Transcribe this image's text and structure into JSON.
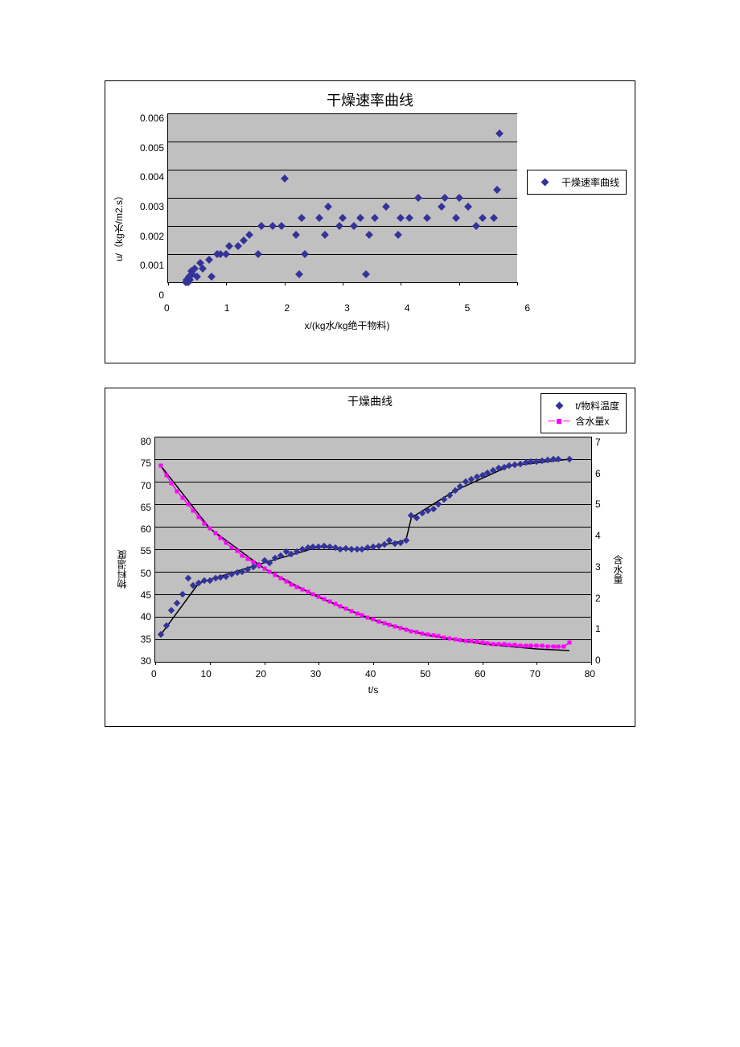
{
  "chart1": {
    "type": "scatter",
    "title": "干燥速率曲线",
    "xlabel": "x/(kg水/kg绝干物料)",
    "ylabel": "u/（kg水/m2.s）",
    "xlim": [
      0,
      6
    ],
    "ylim": [
      0,
      0.006
    ],
    "xtick_step": 1,
    "ytick_step": 0.001,
    "xticks": [
      "0",
      "1",
      "2",
      "3",
      "4",
      "5",
      "6"
    ],
    "yticks": [
      "0",
      "0.001",
      "0.002",
      "0.003",
      "0.004",
      "0.005",
      "0.006"
    ],
    "plot_bg": "#c0c0c0",
    "grid_color": "#000000",
    "marker_color": "#333399",
    "marker_shape": "diamond",
    "marker_size": 7,
    "legend_label": "干燥速率曲线",
    "points": [
      [
        0.3,
        0.0
      ],
      [
        0.32,
        0.0001
      ],
      [
        0.34,
        0.0
      ],
      [
        0.36,
        0.0002
      ],
      [
        0.38,
        0.0001
      ],
      [
        0.4,
        0.0004
      ],
      [
        0.42,
        0.0003
      ],
      [
        0.45,
        0.0005
      ],
      [
        0.5,
        0.0002
      ],
      [
        0.55,
        0.0007
      ],
      [
        0.6,
        0.0005
      ],
      [
        0.7,
        0.0008
      ],
      [
        0.75,
        0.0002
      ],
      [
        0.85,
        0.001
      ],
      [
        0.9,
        0.001
      ],
      [
        1.0,
        0.001
      ],
      [
        1.05,
        0.0013
      ],
      [
        1.2,
        0.0013
      ],
      [
        1.3,
        0.0015
      ],
      [
        1.4,
        0.0017
      ],
      [
        1.55,
        0.001
      ],
      [
        1.6,
        0.002
      ],
      [
        1.8,
        0.002
      ],
      [
        1.95,
        0.002
      ],
      [
        2.0,
        0.0037
      ],
      [
        2.2,
        0.0017
      ],
      [
        2.25,
        0.0003
      ],
      [
        2.3,
        0.0023
      ],
      [
        2.35,
        0.001
      ],
      [
        2.6,
        0.0023
      ],
      [
        2.7,
        0.0017
      ],
      [
        2.75,
        0.0027
      ],
      [
        2.95,
        0.002
      ],
      [
        3.0,
        0.0023
      ],
      [
        3.2,
        0.002
      ],
      [
        3.3,
        0.0023
      ],
      [
        3.4,
        0.0003
      ],
      [
        3.45,
        0.0017
      ],
      [
        3.55,
        0.0023
      ],
      [
        3.75,
        0.0027
      ],
      [
        3.95,
        0.0017
      ],
      [
        4.0,
        0.0023
      ],
      [
        4.15,
        0.0023
      ],
      [
        4.3,
        0.003
      ],
      [
        4.45,
        0.0023
      ],
      [
        4.7,
        0.0027
      ],
      [
        4.75,
        0.003
      ],
      [
        4.95,
        0.0023
      ],
      [
        5.0,
        0.003
      ],
      [
        5.15,
        0.0027
      ],
      [
        5.3,
        0.002
      ],
      [
        5.4,
        0.0023
      ],
      [
        5.6,
        0.0023
      ],
      [
        5.65,
        0.0033
      ],
      [
        5.7,
        0.0053
      ]
    ]
  },
  "chart2": {
    "type": "dual-axis-scatter-line",
    "title": "干燥曲线",
    "xlabel": "t/s",
    "ylabel_left": "物料温度",
    "ylabel_right": "含水量",
    "xlim": [
      0,
      80
    ],
    "ylim_left": [
      30,
      80
    ],
    "ylim_right": [
      0,
      7
    ],
    "xtick_step": 10,
    "ytick_left_step": 5,
    "ytick_right_step": 1,
    "xticks": [
      "0",
      "10",
      "20",
      "30",
      "40",
      "50",
      "60",
      "70",
      "80"
    ],
    "yticks_left": [
      "30",
      "35",
      "40",
      "45",
      "50",
      "55",
      "60",
      "65",
      "70",
      "75",
      "80"
    ],
    "yticks_right": [
      "0",
      "1",
      "2",
      "3",
      "4",
      "5",
      "6",
      "7"
    ],
    "plot_bg": "#c0c0c0",
    "grid_color": "#000000",
    "series_temp": {
      "label": "t/物料温度",
      "marker_color": "#333399",
      "marker_shape": "diamond",
      "marker_size": 6,
      "trend_color": "#000000",
      "trend_width": 1.5,
      "points": [
        [
          1,
          36.0
        ],
        [
          2,
          38.0
        ],
        [
          3,
          41.5
        ],
        [
          4,
          43.0
        ],
        [
          5,
          45.0
        ],
        [
          6,
          48.5
        ],
        [
          7,
          47.0
        ],
        [
          8,
          47.5
        ],
        [
          9,
          48.0
        ],
        [
          10,
          48.0
        ],
        [
          11,
          48.5
        ],
        [
          12,
          48.7
        ],
        [
          13,
          49.0
        ],
        [
          14,
          49.5
        ],
        [
          15,
          49.8
        ],
        [
          16,
          50.0
        ],
        [
          17,
          50.5
        ],
        [
          18,
          51.0
        ],
        [
          19,
          51.5
        ],
        [
          20,
          52.5
        ],
        [
          21,
          52.0
        ],
        [
          22,
          53.0
        ],
        [
          23,
          53.5
        ],
        [
          24,
          54.5
        ],
        [
          25,
          54.0
        ],
        [
          26,
          54.5
        ],
        [
          27,
          55.0
        ],
        [
          28,
          55.3
        ],
        [
          29,
          55.5
        ],
        [
          30,
          55.5
        ],
        [
          31,
          55.7
        ],
        [
          32,
          55.5
        ],
        [
          33,
          55.3
        ],
        [
          34,
          55.0
        ],
        [
          35,
          55.2
        ],
        [
          36,
          55.0
        ],
        [
          37,
          55.0
        ],
        [
          38,
          55.0
        ],
        [
          39,
          55.3
        ],
        [
          40,
          55.5
        ],
        [
          41,
          55.7
        ],
        [
          42,
          56.0
        ],
        [
          43,
          57.0
        ],
        [
          44,
          56.3
        ],
        [
          45,
          56.5
        ],
        [
          46,
          57.0
        ],
        [
          47,
          62.5
        ],
        [
          48,
          62.0
        ],
        [
          49,
          63.0
        ],
        [
          50,
          63.5
        ],
        [
          51,
          64.0
        ],
        [
          52,
          65.0
        ],
        [
          53,
          66.0
        ],
        [
          54,
          67.0
        ],
        [
          55,
          68.0
        ],
        [
          56,
          69.0
        ],
        [
          57,
          70.0
        ],
        [
          58,
          70.5
        ],
        [
          59,
          71.0
        ],
        [
          60,
          71.5
        ],
        [
          61,
          72.0
        ],
        [
          62,
          72.5
        ],
        [
          63,
          73.0
        ],
        [
          64,
          73.2
        ],
        [
          65,
          73.5
        ],
        [
          66,
          73.8
        ],
        [
          67,
          74.0
        ],
        [
          68,
          74.2
        ],
        [
          69,
          74.4
        ],
        [
          70,
          74.5
        ],
        [
          71,
          74.7
        ],
        [
          72,
          74.8
        ],
        [
          73,
          75.0
        ],
        [
          74,
          75.0
        ],
        [
          76,
          75.0
        ]
      ],
      "trend": [
        [
          1,
          36.0
        ],
        [
          8,
          47.5
        ],
        [
          20,
          52.0
        ],
        [
          30,
          55.5
        ],
        [
          38,
          55.0
        ],
        [
          46,
          57.0
        ],
        [
          47,
          62.0
        ],
        [
          55,
          68.0
        ],
        [
          65,
          73.5
        ],
        [
          76,
          75.0
        ]
      ]
    },
    "series_moist": {
      "label": "含水量x",
      "marker_color": "#ff00ff",
      "line_color": "#ff00ff",
      "marker_shape": "square",
      "marker_size": 5,
      "line_width": 1.5,
      "trend_color": "#000000",
      "points": [
        [
          1,
          6.1
        ],
        [
          2,
          5.8
        ],
        [
          3,
          5.55
        ],
        [
          4,
          5.3
        ],
        [
          5,
          5.1
        ],
        [
          6,
          4.9
        ],
        [
          7,
          4.7
        ],
        [
          8,
          4.5
        ],
        [
          9,
          4.3
        ],
        [
          10,
          4.15
        ],
        [
          11,
          4.0
        ],
        [
          12,
          3.85
        ],
        [
          13,
          3.7
        ],
        [
          14,
          3.55
        ],
        [
          15,
          3.45
        ],
        [
          16,
          3.3
        ],
        [
          17,
          3.2
        ],
        [
          18,
          3.1
        ],
        [
          19,
          3.0
        ],
        [
          20,
          2.9
        ],
        [
          21,
          2.8
        ],
        [
          22,
          2.7
        ],
        [
          23,
          2.6
        ],
        [
          24,
          2.5
        ],
        [
          25,
          2.4
        ],
        [
          26,
          2.32
        ],
        [
          27,
          2.25
        ],
        [
          28,
          2.17
        ],
        [
          29,
          2.1
        ],
        [
          30,
          2.02
        ],
        [
          31,
          1.95
        ],
        [
          32,
          1.88
        ],
        [
          33,
          1.8
        ],
        [
          34,
          1.73
        ],
        [
          35,
          1.65
        ],
        [
          36,
          1.58
        ],
        [
          37,
          1.5
        ],
        [
          38,
          1.45
        ],
        [
          39,
          1.38
        ],
        [
          40,
          1.32
        ],
        [
          41,
          1.26
        ],
        [
          42,
          1.2
        ],
        [
          43,
          1.14
        ],
        [
          44,
          1.1
        ],
        [
          45,
          1.05
        ],
        [
          46,
          1.0
        ],
        [
          47,
          0.96
        ],
        [
          48,
          0.92
        ],
        [
          49,
          0.88
        ],
        [
          50,
          0.85
        ],
        [
          51,
          0.82
        ],
        [
          52,
          0.79
        ],
        [
          53,
          0.76
        ],
        [
          54,
          0.73
        ],
        [
          55,
          0.7
        ],
        [
          56,
          0.68
        ],
        [
          57,
          0.66
        ],
        [
          58,
          0.64
        ],
        [
          59,
          0.62
        ],
        [
          60,
          0.6
        ],
        [
          61,
          0.58
        ],
        [
          62,
          0.56
        ],
        [
          63,
          0.55
        ],
        [
          64,
          0.54
        ],
        [
          65,
          0.53
        ],
        [
          66,
          0.52
        ],
        [
          67,
          0.51
        ],
        [
          68,
          0.5
        ],
        [
          69,
          0.5
        ],
        [
          70,
          0.5
        ],
        [
          71,
          0.49
        ],
        [
          72,
          0.48
        ],
        [
          73,
          0.48
        ],
        [
          74,
          0.47
        ],
        [
          75,
          0.47
        ],
        [
          76,
          0.6
        ]
      ],
      "trend": [
        [
          1,
          6.1
        ],
        [
          10,
          4.15
        ],
        [
          20,
          2.9
        ],
        [
          30,
          2.0
        ],
        [
          40,
          1.3
        ],
        [
          50,
          0.82
        ],
        [
          60,
          0.55
        ],
        [
          70,
          0.4
        ],
        [
          76,
          0.35
        ]
      ]
    }
  }
}
